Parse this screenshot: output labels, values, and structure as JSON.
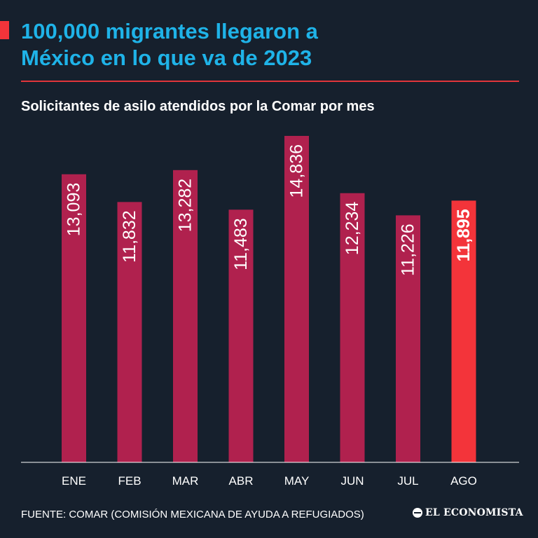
{
  "header": {
    "title_line1": "100,000 migrantes llegaron a",
    "title_line2": "México en lo que va de 2023",
    "subtitle": "Solicitantes de asilo atendidos por la Comar por mes"
  },
  "footer": {
    "source": "FUENTE: COMAR (COMISIÓN MEXICANA DE AYUDA A REFUGIADOS)",
    "brand": "EL ECONOMISTA"
  },
  "colors": {
    "background": "#16202d",
    "bar": "#b0214e",
    "highlight": "#f3343a",
    "title": "#1fb3e8",
    "text": "#ffffff"
  },
  "chart_data": {
    "type": "bar",
    "title": "Solicitantes de asilo atendidos por la Comar por mes",
    "categories": [
      "ENE",
      "FEB",
      "MAR",
      "ABR",
      "MAY",
      "JUN",
      "JUL",
      "AGO"
    ],
    "values": [
      13093,
      11832,
      13282,
      11483,
      14836,
      12234,
      11226,
      11895
    ],
    "labels": [
      "13,093",
      "11,832",
      "13,282",
      "11,483",
      "14,836",
      "12,234",
      "11,226",
      "11,895"
    ],
    "highlight_index": 7,
    "xlabel": "",
    "ylabel": "",
    "ylim": [
      0,
      14836
    ],
    "grid": false
  }
}
